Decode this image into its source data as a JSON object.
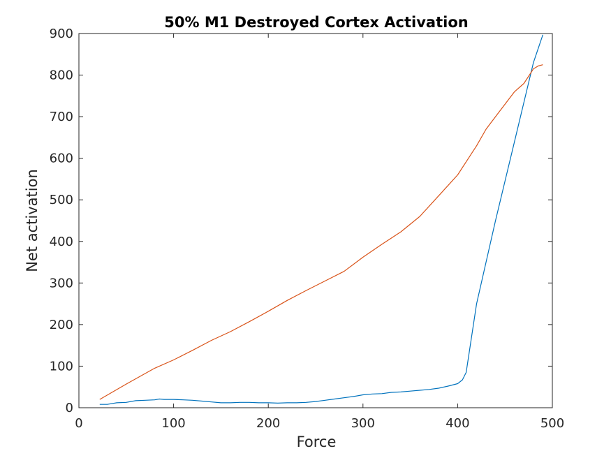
{
  "chart_data": {
    "type": "line",
    "title": "50% M1 Destroyed Cortex Activation",
    "xlabel": "Force",
    "ylabel": "Net activation",
    "xlim": [
      0,
      500
    ],
    "ylim": [
      0,
      900
    ],
    "xticks": [
      0,
      100,
      200,
      300,
      400,
      500
    ],
    "yticks": [
      0,
      100,
      200,
      300,
      400,
      500,
      600,
      700,
      800,
      900
    ],
    "grid": false,
    "series": [
      {
        "color": "#0072BD",
        "x": [
          22,
          30,
          40,
          50,
          60,
          70,
          80,
          85,
          90,
          100,
          110,
          120,
          130,
          140,
          150,
          160,
          170,
          180,
          190,
          200,
          210,
          220,
          230,
          240,
          250,
          260,
          270,
          280,
          290,
          300,
          310,
          320,
          330,
          340,
          350,
          360,
          370,
          380,
          390,
          400,
          405,
          409,
          420,
          440,
          460,
          480,
          490
        ],
        "y": [
          8,
          8,
          12,
          13,
          17,
          18,
          19,
          21,
          20,
          20,
          19,
          18,
          16,
          14,
          12,
          12,
          13,
          13,
          12,
          12,
          11,
          12,
          12,
          13,
          15,
          18,
          21,
          24,
          27,
          31,
          33,
          34,
          37,
          38,
          40,
          42,
          44,
          47,
          52,
          58,
          67,
          85,
          250,
          450,
          640,
          830,
          897
        ]
      },
      {
        "color": "#D95319",
        "x": [
          22,
          50,
          80,
          100,
          120,
          140,
          160,
          180,
          200,
          220,
          240,
          260,
          280,
          300,
          320,
          340,
          360,
          380,
          400,
          410,
          420,
          430,
          440,
          450,
          460,
          470,
          480,
          485,
          490
        ],
        "y": [
          20,
          57,
          95,
          115,
          138,
          162,
          183,
          207,
          232,
          258,
          282,
          305,
          328,
          362,
          393,
          423,
          460,
          510,
          560,
          595,
          630,
          670,
          700,
          730,
          760,
          780,
          815,
          822,
          825
        ]
      }
    ]
  }
}
